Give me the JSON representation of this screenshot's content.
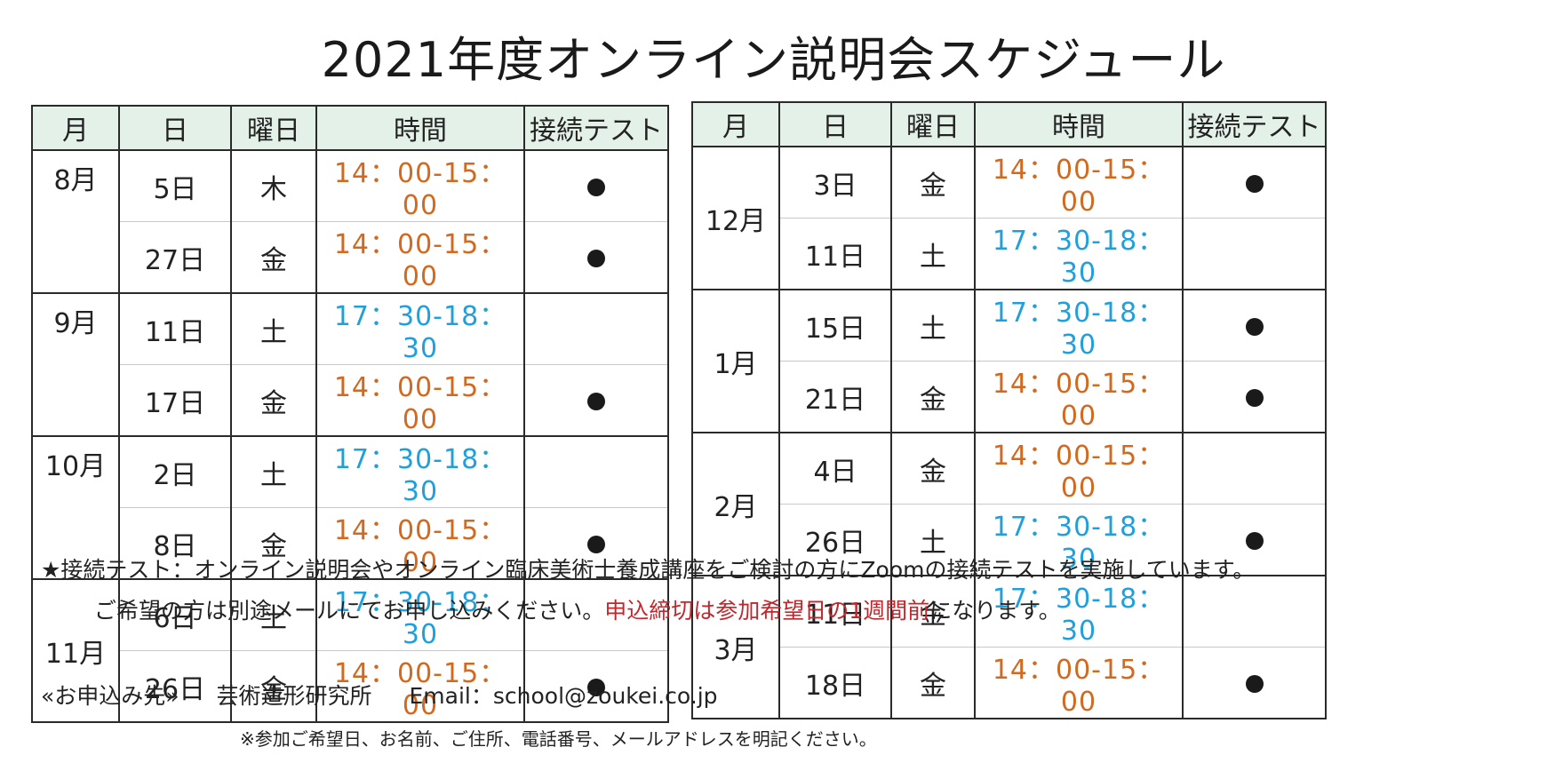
{
  "title": "2021年度オンライン説明会スケジュール",
  "colors": {
    "afternoon_time": "#d2691e",
    "evening_time": "#1fa0dc",
    "header_bg": "#e4f1e9",
    "deadline_red": "#c0282d"
  },
  "headers": [
    "月",
    "日",
    "曜日",
    "時間",
    "接続テスト"
  ],
  "left_table": [
    {
      "month": "8月",
      "rows": [
        {
          "day": "5日",
          "weekday": "木",
          "time": "14：00-15：00",
          "time_type": "afternoon",
          "test": true
        },
        {
          "day": "27日",
          "weekday": "金",
          "time": "14：00-15：00",
          "time_type": "afternoon",
          "test": true
        }
      ]
    },
    {
      "month": "9月",
      "rows": [
        {
          "day": "11日",
          "weekday": "土",
          "time": "17：30-18：30",
          "time_type": "evening",
          "test": false
        },
        {
          "day": "17日",
          "weekday": "金",
          "time": "14：00-15：00",
          "time_type": "afternoon",
          "test": true
        }
      ]
    },
    {
      "month": "10月",
      "rows": [
        {
          "day": "2日",
          "weekday": "土",
          "time": "17：30-18：30",
          "time_type": "evening",
          "test": false
        },
        {
          "day": "8日",
          "weekday": "金",
          "time": "14：00-15：00",
          "time_type": "afternoon",
          "test": true
        }
      ]
    },
    {
      "month": "11月",
      "rows": [
        {
          "day": "6日",
          "weekday": "土",
          "time": "17：30-18：30",
          "time_type": "evening",
          "test": false
        },
        {
          "day": "26日",
          "weekday": "金",
          "time": "14：00-15：00",
          "time_type": "afternoon",
          "test": true
        }
      ]
    }
  ],
  "right_table": [
    {
      "month": "12月",
      "rows": [
        {
          "day": "3日",
          "weekday": "金",
          "time": "14：00-15：00",
          "time_type": "afternoon",
          "test": true
        },
        {
          "day": "11日",
          "weekday": "土",
          "time": "17：30-18：30",
          "time_type": "evening",
          "test": false
        }
      ]
    },
    {
      "month": "1月",
      "rows": [
        {
          "day": "15日",
          "weekday": "土",
          "time": "17：30-18：30",
          "time_type": "evening",
          "test": true
        },
        {
          "day": "21日",
          "weekday": "金",
          "time": "14：00-15：00",
          "time_type": "afternoon",
          "test": true
        }
      ]
    },
    {
      "month": "2月",
      "rows": [
        {
          "day": "4日",
          "weekday": "金",
          "time": "14：00-15：00",
          "time_type": "afternoon",
          "test": false
        },
        {
          "day": "26日",
          "weekday": "土",
          "time": "17：30-18：30",
          "time_type": "evening",
          "test": true
        }
      ]
    },
    {
      "month": "3月",
      "rows": [
        {
          "day": "11日",
          "weekday": "金",
          "time": "17：30-18：30",
          "time_type": "evening",
          "test": false
        },
        {
          "day": "18日",
          "weekday": "金",
          "time": "14：00-15：00",
          "time_type": "afternoon",
          "test": true
        }
      ]
    }
  ],
  "note": {
    "line1": "★接続テスト：オンライン説明会やオンライン臨床美術士養成講座をご検討の方にZoomの接続テストを実施しています。",
    "line2_before": "ご希望の方は別途メールにてお申し込みください。",
    "line2_red": "申込締切は参加希望日の1週間前",
    "line2_after": "になります。"
  },
  "contact": {
    "label": "«お申込み先»",
    "org": "芸術造形研究所",
    "email": "Email：school@zoukei.co.jp",
    "note": "※参加ご希望日、お名前、ご住所、電話番号、メールアドレスを明記ください。"
  }
}
